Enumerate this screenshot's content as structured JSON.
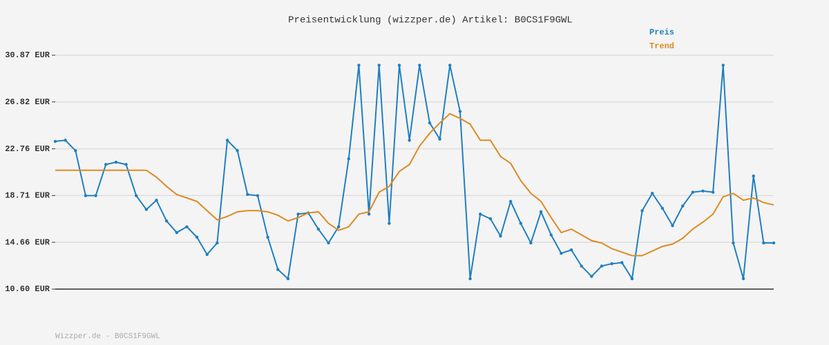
{
  "chart_data": {
    "type": "line",
    "title": "Preisentwicklung (wizzper.de) Artikel: B0CS1F9GWL",
    "categories": [
      null,
      null,
      null,
      null,
      null,
      null,
      null,
      null,
      null,
      null,
      null,
      null,
      null,
      null,
      null,
      null,
      null,
      null,
      null,
      null,
      null,
      null,
      null,
      null,
      null,
      null,
      null,
      null,
      null,
      null,
      null,
      null,
      null,
      null,
      null,
      null,
      null,
      null,
      null,
      null,
      null,
      null,
      null,
      null,
      null,
      null,
      null,
      null,
      null,
      null,
      null,
      null,
      null,
      null,
      null,
      null,
      null,
      null,
      null,
      null,
      null,
      null,
      null,
      null,
      null,
      null,
      null,
      null,
      null,
      null,
      null,
      null
    ],
    "series": [
      {
        "name": "Preis",
        "color": "#1f7fc0",
        "markers": true,
        "values": [
          23.4,
          23.5,
          22.6,
          18.7,
          18.7,
          21.4,
          21.6,
          21.4,
          18.7,
          17.5,
          18.3,
          16.5,
          15.5,
          16.0,
          15.1,
          13.6,
          14.6,
          23.5,
          22.6,
          18.8,
          18.7,
          15.1,
          12.3,
          11.5,
          17.1,
          17.2,
          15.8,
          14.6,
          16.0,
          21.9,
          30.0,
          17.1,
          30.0,
          16.3,
          30.0,
          23.5,
          30.0,
          25.0,
          23.6,
          30.0,
          26.0,
          11.5,
          17.1,
          16.7,
          15.2,
          18.2,
          16.3,
          14.6,
          17.3,
          15.3,
          13.7,
          14.0,
          12.6,
          11.7,
          12.6,
          12.8,
          12.9,
          11.5,
          17.4,
          18.9,
          17.6,
          16.1,
          17.8,
          19.0,
          19.1,
          19.0,
          30.0,
          14.6,
          11.5,
          20.4,
          14.6,
          14.6
        ]
      },
      {
        "name": "Trend",
        "color": "#dd8a22",
        "markers": false,
        "values": [
          20.9,
          20.9,
          20.9,
          20.9,
          20.9,
          20.9,
          20.9,
          20.9,
          20.9,
          20.9,
          20.3,
          19.5,
          18.8,
          18.5,
          18.2,
          17.4,
          16.6,
          16.9,
          17.3,
          17.4,
          17.4,
          17.3,
          17.0,
          16.5,
          16.8,
          17.2,
          17.3,
          16.3,
          15.7,
          16.0,
          17.1,
          17.3,
          19.0,
          19.5,
          20.8,
          21.4,
          23.0,
          24.1,
          25.0,
          25.8,
          25.4,
          24.9,
          23.5,
          23.5,
          22.1,
          21.5,
          20.0,
          18.9,
          18.2,
          16.8,
          15.5,
          15.8,
          15.3,
          14.8,
          14.6,
          14.1,
          13.8,
          13.5,
          13.5,
          13.9,
          14.3,
          14.5,
          15.0,
          15.8,
          16.4,
          17.1,
          18.6,
          18.9,
          18.3,
          18.5,
          18.1,
          17.9
        ]
      }
    ],
    "ylim": [
      10.6,
      30.87
    ],
    "yticks": [
      {
        "value": 10.6,
        "label": "10.60 EUR"
      },
      {
        "value": 14.66,
        "label": "14.66 EUR"
      },
      {
        "value": 18.71,
        "label": "18.71 EUR"
      },
      {
        "value": 22.76,
        "label": "22.76 EUR"
      },
      {
        "value": 26.82,
        "label": "26.82 EUR"
      },
      {
        "value": 30.87,
        "label": "30.87 EUR"
      }
    ],
    "grid": true,
    "legend": "top-right",
    "footer": "Wizzper.de - B0CS1F9GWL"
  }
}
